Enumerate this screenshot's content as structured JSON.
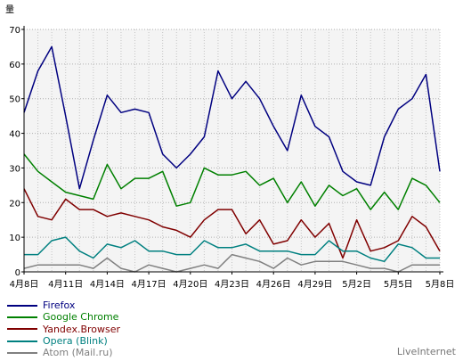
{
  "chart_data": {
    "type": "line",
    "ylabel": "量",
    "ylim": [
      0,
      70
    ],
    "yticks": [
      "0",
      "10",
      "20",
      "30",
      "40",
      "50",
      "60",
      "70"
    ],
    "x_tick_labels": [
      "4月8日",
      "4月11日",
      "4月14日",
      "4月17日",
      "4月20日",
      "4月23日",
      "4月26日",
      "4月29日",
      "5月2日",
      "5月5日",
      "5月8日"
    ],
    "num_points": 31,
    "grid": true,
    "legend_position": "bottom-left",
    "series": [
      {
        "name": "Firefox",
        "color": "#000080",
        "values": [
          46,
          58,
          65,
          45,
          24,
          38,
          51,
          46,
          47,
          46,
          34,
          30,
          34,
          39,
          58,
          50,
          55,
          50,
          42,
          35,
          51,
          42,
          39,
          29,
          26,
          25,
          39,
          47,
          50,
          57,
          29
        ]
      },
      {
        "name": "Google Chrome",
        "color": "#008000",
        "values": [
          34,
          29,
          26,
          23,
          22,
          21,
          31,
          24,
          27,
          27,
          29,
          19,
          20,
          30,
          28,
          28,
          29,
          25,
          27,
          20,
          26,
          19,
          25,
          22,
          24,
          18,
          23,
          18,
          27,
          25,
          20
        ]
      },
      {
        "name": "Yandex.Browser",
        "color": "#800000",
        "values": [
          24,
          16,
          15,
          21,
          18,
          18,
          16,
          17,
          16,
          15,
          13,
          12,
          10,
          15,
          18,
          18,
          11,
          15,
          8,
          9,
          15,
          10,
          14,
          4,
          15,
          6,
          7,
          9,
          16,
          13,
          6
        ]
      },
      {
        "name": "Opera (Blink)",
        "color": "#008080",
        "values": [
          5,
          5,
          9,
          10,
          6,
          4,
          8,
          7,
          9,
          6,
          6,
          5,
          5,
          9,
          7,
          7,
          8,
          6,
          6,
          6,
          5,
          5,
          9,
          6,
          6,
          4,
          3,
          8,
          7,
          4,
          4
        ]
      },
      {
        "name": "Atom (Mail.ru)",
        "color": "#808080",
        "values": [
          1,
          2,
          2,
          2,
          2,
          1,
          4,
          1,
          0,
          2,
          1,
          0,
          1,
          2,
          1,
          5,
          4,
          3,
          1,
          4,
          2,
          3,
          3,
          3,
          2,
          1,
          1,
          0,
          2,
          2,
          2
        ]
      }
    ]
  },
  "footer": {
    "credit": "LiveInternet"
  }
}
